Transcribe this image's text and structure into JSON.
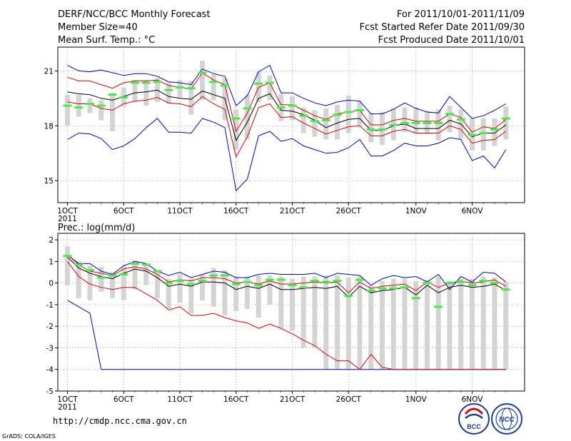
{
  "header": {
    "title": "DERF/NCC/BCC Monthly Forecast",
    "member_size": "Member Size=40",
    "variable": "Mean Surf. Temp.: °C",
    "period": "For 2011/10/01-2011/11/09",
    "started": "Fcst Started Refer Date 2011/09/30",
    "produced": "Fcst Produced Date 2011/10/01"
  },
  "footer": {
    "url": "http://cmdp.ncc.cma.gov.cn",
    "credit": "GrADS: COLA/IGES",
    "logo_left": "BCC",
    "logo_right": "NCC"
  },
  "colors": {
    "mean": "#000000",
    "spread": "#dd0000",
    "envelope": "#0000cc",
    "median": "#44ee44",
    "box": "#d4d4d4",
    "grid": "#888888"
  },
  "chart_data": [
    {
      "type": "line",
      "title": "Mean Surf. Temp.: °C",
      "xlabel": "",
      "ylabel": "",
      "x_day_range": [
        0,
        39
      ],
      "ylim": [
        13.8,
        22.3
      ],
      "yticks": [
        15,
        18,
        21
      ],
      "xticks": [
        {
          "day": 0,
          "label": "1OCT"
        },
        {
          "day": 5,
          "label": "6OCT"
        },
        {
          "day": 10,
          "label": "11OCT"
        },
        {
          "day": 15,
          "label": "16OCT"
        },
        {
          "day": 20,
          "label": "21OCT"
        },
        {
          "day": 25,
          "label": "26OCT"
        },
        {
          "day": 31,
          "label": "1NOV"
        },
        {
          "day": 36,
          "label": "6NOV"
        }
      ],
      "year_label": "2011",
      "series": [
        {
          "name": "ensemble_mean",
          "color": "#000000",
          "values": [
            19.85,
            19.75,
            19.7,
            19.5,
            19.4,
            19.6,
            19.8,
            19.85,
            19.95,
            19.6,
            19.5,
            19.45,
            19.9,
            19.7,
            19.5,
            17.2,
            18.2,
            19.5,
            19.75,
            18.85,
            18.8,
            18.6,
            18.3,
            17.9,
            18.15,
            18.35,
            18.4,
            17.75,
            17.75,
            18.0,
            18.1,
            17.85,
            17.85,
            17.85,
            18.3,
            18.1,
            17.4,
            17.6,
            17.6,
            18.05
          ]
        },
        {
          "name": "upper_spread",
          "color": "#dd0000",
          "values": [
            20.65,
            20.45,
            20.45,
            20.25,
            20.05,
            20.35,
            20.45,
            20.45,
            20.5,
            20.2,
            20.1,
            20.0,
            20.9,
            20.5,
            20.25,
            17.7,
            18.7,
            20.1,
            20.35,
            19.15,
            19.15,
            18.85,
            18.55,
            18.35,
            18.65,
            18.75,
            18.85,
            18.05,
            18.05,
            18.3,
            18.4,
            18.25,
            18.25,
            18.25,
            18.65,
            18.45,
            17.65,
            17.95,
            17.85,
            18.35
          ]
        },
        {
          "name": "lower_spread",
          "color": "#dd0000",
          "values": [
            19.3,
            19.2,
            19.2,
            18.95,
            18.85,
            19.2,
            19.35,
            19.4,
            19.55,
            19.25,
            19.2,
            19.05,
            19.6,
            19.2,
            18.9,
            16.3,
            17.4,
            19.0,
            19.2,
            18.45,
            18.5,
            18.15,
            17.85,
            17.55,
            17.75,
            17.95,
            18.0,
            17.45,
            17.45,
            17.7,
            17.8,
            17.6,
            17.6,
            17.6,
            18.0,
            17.8,
            17.05,
            17.2,
            17.25,
            17.7
          ]
        },
        {
          "name": "ensemble_max",
          "color": "#0000cc",
          "values": [
            21.3,
            21.0,
            20.95,
            21.05,
            20.9,
            20.75,
            20.85,
            20.85,
            20.7,
            20.4,
            20.35,
            20.25,
            21.1,
            20.85,
            20.7,
            19.1,
            19.65,
            20.95,
            21.3,
            19.8,
            19.8,
            19.5,
            19.25,
            19.1,
            19.3,
            19.4,
            19.35,
            18.65,
            18.65,
            18.9,
            19.25,
            18.95,
            18.75,
            18.7,
            19.6,
            19.0,
            18.4,
            18.55,
            18.85,
            19.2
          ]
        },
        {
          "name": "ensemble_min",
          "color": "#0000cc",
          "values": [
            17.25,
            17.6,
            17.55,
            17.3,
            16.7,
            16.9,
            17.3,
            17.9,
            18.4,
            17.65,
            17.65,
            17.6,
            18.4,
            18.2,
            17.9,
            14.45,
            15.1,
            17.45,
            17.7,
            17.15,
            17.3,
            16.9,
            16.7,
            16.5,
            16.55,
            16.8,
            17.25,
            16.35,
            16.35,
            16.65,
            17.05,
            16.9,
            16.9,
            17.05,
            17.35,
            17.25,
            16.1,
            16.35,
            15.7,
            16.7
          ]
        },
        {
          "name": "median",
          "color": "#44ee44",
          "values": [
            19.1,
            19.0,
            19.2,
            19.1,
            19.7,
            19.55,
            20.35,
            20.35,
            20.4,
            19.95,
            20.1,
            20.05,
            20.9,
            20.4,
            20.2,
            18.4,
            18.95,
            20.3,
            20.35,
            19.0,
            19.1,
            18.55,
            18.25,
            18.3,
            18.6,
            18.75,
            18.85,
            17.8,
            17.8,
            18.05,
            18.15,
            18.15,
            18.15,
            18.15,
            18.65,
            18.35,
            17.5,
            17.6,
            17.8,
            18.4
          ]
        },
        {
          "name": "box_top",
          "color": "#d4d4d4",
          "values": [
            19.7,
            19.7,
            19.5,
            19.4,
            19.8,
            20.1,
            20.5,
            20.5,
            20.6,
            20.35,
            20.5,
            20.45,
            21.55,
            20.8,
            20.6,
            18.9,
            19.7,
            20.95,
            20.75,
            19.75,
            19.6,
            19.0,
            18.85,
            18.95,
            19.15,
            19.65,
            19.35,
            18.7,
            18.75,
            18.95,
            19.0,
            19.0,
            18.8,
            18.9,
            19.1,
            18.9,
            18.4,
            18.4,
            18.4,
            19.05
          ]
        },
        {
          "name": "box_bottom",
          "color": "#d4d4d4",
          "values": [
            18.0,
            18.5,
            18.7,
            18.3,
            17.7,
            19.05,
            19.3,
            19.1,
            19.3,
            19.2,
            19.55,
            18.6,
            19.4,
            19.4,
            18.3,
            16.7,
            17.25,
            19.3,
            19.4,
            18.25,
            18.3,
            17.6,
            17.4,
            17.25,
            17.25,
            17.6,
            18.0,
            17.1,
            16.95,
            17.2,
            17.65,
            17.55,
            17.55,
            17.2,
            17.65,
            17.3,
            16.65,
            16.65,
            16.9,
            17.25
          ]
        }
      ]
    },
    {
      "type": "line",
      "title": "Prec.: log(mm/d)",
      "xlabel": "",
      "ylabel": "",
      "x_day_range": [
        0,
        39
      ],
      "ylim": [
        -5,
        2.3
      ],
      "yticks": [
        -5,
        -4,
        -3,
        -2,
        -1,
        0,
        1,
        2
      ],
      "xticks": [
        {
          "day": 0,
          "label": "1OCT"
        },
        {
          "day": 5,
          "label": "6OCT"
        },
        {
          "day": 10,
          "label": "11OCT"
        },
        {
          "day": 15,
          "label": "16OCT"
        },
        {
          "day": 20,
          "label": "21OCT"
        },
        {
          "day": 25,
          "label": "26OCT"
        },
        {
          "day": 31,
          "label": "1NOV"
        },
        {
          "day": 36,
          "label": "6NOV"
        }
      ],
      "year_label": "2011",
      "series": [
        {
          "name": "ensemble_mean",
          "color": "#000000",
          "values": [
            1.2,
            0.7,
            0.45,
            0.3,
            0.2,
            0.45,
            0.65,
            0.55,
            0.25,
            -0.15,
            -0.05,
            -0.15,
            0.05,
            0.05,
            0.0,
            -0.3,
            -0.15,
            -0.25,
            -0.05,
            -0.3,
            -0.3,
            -0.25,
            -0.2,
            -0.25,
            -0.15,
            -0.65,
            -0.15,
            -0.45,
            -0.35,
            -0.3,
            -0.2,
            -0.55,
            -0.1,
            -0.45,
            -0.2,
            -0.1,
            -0.2,
            -0.15,
            -0.05,
            -0.35
          ]
        },
        {
          "name": "upper_spread",
          "color": "#dd0000",
          "values": [
            1.3,
            0.85,
            0.55,
            0.45,
            0.35,
            0.65,
            0.75,
            0.65,
            0.4,
            0.05,
            0.15,
            0.1,
            0.25,
            0.25,
            0.2,
            0.0,
            0.05,
            -0.05,
            0.1,
            -0.05,
            -0.05,
            0.0,
            0.05,
            0.0,
            0.05,
            -0.45,
            0.05,
            -0.25,
            -0.15,
            -0.1,
            -0.05,
            -0.35,
            0.05,
            -0.2,
            0.0,
            0.1,
            0.0,
            0.05,
            0.15,
            -0.15
          ]
        },
        {
          "name": "lower_spread",
          "color": "#dd0000",
          "values": [
            1.0,
            0.3,
            -0.05,
            -0.2,
            -0.3,
            -0.2,
            -0.2,
            -0.5,
            -0.8,
            -1.25,
            -1.1,
            -1.5,
            -1.5,
            -1.4,
            -1.6,
            -1.75,
            -1.85,
            -2.1,
            -1.9,
            -2.1,
            -2.35,
            -2.65,
            -2.9,
            -3.3,
            -3.6,
            -3.6,
            -4.0,
            -3.3,
            -3.9,
            -4.0,
            -4.0,
            -4.0,
            -4.0,
            -4.0,
            -4.0,
            -4.0,
            -4.0,
            -4.0,
            -4.0,
            -4.0
          ]
        },
        {
          "name": "ensemble_max",
          "color": "#0000cc",
          "values": [
            1.3,
            0.9,
            0.9,
            0.55,
            0.4,
            0.8,
            1.0,
            0.9,
            0.55,
            0.35,
            0.5,
            0.25,
            0.4,
            0.55,
            0.5,
            0.25,
            0.25,
            0.4,
            0.45,
            0.4,
            0.4,
            0.4,
            0.45,
            0.25,
            0.45,
            0.4,
            0.35,
            -0.1,
            0.2,
            0.35,
            0.25,
            0.3,
            0.05,
            0.4,
            -0.3,
            0.3,
            0.05,
            0.5,
            0.45,
            0.05
          ]
        },
        {
          "name": "ensemble_min",
          "color": "#0000cc",
          "values": [
            -0.8,
            -1.1,
            -1.4,
            -4.0,
            -4.0,
            -4.0,
            -4.0,
            -4.0,
            -4.0,
            -4.0,
            -4.0,
            -4.0,
            -4.0,
            -4.0,
            -4.0,
            -4.0,
            -4.0,
            -4.0,
            -4.0,
            -4.0,
            -4.0,
            -4.0,
            -4.0,
            -4.0,
            -4.0,
            -4.0,
            -4.0,
            -4.0,
            -4.0,
            -4.0,
            -4.0,
            -4.0,
            -4.0,
            -4.0,
            -4.0,
            -4.0,
            -4.0,
            -4.0,
            -4.0,
            -4.0
          ]
        },
        {
          "name": "median",
          "color": "#44ee44",
          "values": [
            1.25,
            0.85,
            0.6,
            0.25,
            0.35,
            0.4,
            0.9,
            0.85,
            0.55,
            0.0,
            0.1,
            -0.05,
            0.1,
            0.35,
            0.35,
            -0.05,
            0.05,
            -0.1,
            0.15,
            0.15,
            -0.1,
            -0.2,
            0.1,
            0.05,
            0.1,
            -0.6,
            0.15,
            -0.35,
            -0.25,
            -0.25,
            -0.2,
            -0.7,
            0.0,
            -1.1,
            0.0,
            0.05,
            -0.1,
            0.1,
            0.0,
            -0.3
          ]
        },
        {
          "name": "box_top",
          "color": "#d4d4d4",
          "values": [
            1.7,
            1.0,
            0.8,
            0.75,
            0.5,
            0.8,
            1.05,
            0.8,
            0.6,
            0.2,
            0.4,
            0.2,
            0.4,
            0.7,
            0.6,
            0.3,
            0.3,
            0.35,
            0.35,
            0.3,
            0.2,
            0.3,
            0.3,
            0.35,
            0.35,
            0.25,
            0.3,
            -0.1,
            0.1,
            0.2,
            0.2,
            0.1,
            0.15,
            0.3,
            0.1,
            0.2,
            0.2,
            0.3,
            0.25,
            0.05
          ]
        },
        {
          "name": "box_bottom",
          "color": "#d4d4d4",
          "values": [
            -0.1,
            -0.7,
            -0.8,
            -0.4,
            -0.7,
            -0.8,
            -0.3,
            -0.1,
            -0.7,
            -1.2,
            -0.9,
            -1.4,
            -0.8,
            -1.1,
            -1.5,
            -1.3,
            -1.2,
            -1.6,
            -1.0,
            -2.1,
            -2.2,
            -3.0,
            -3.0,
            -4.0,
            -4.0,
            -4.0,
            -4.0,
            -4.0,
            -4.0,
            -4.0,
            -4.0,
            -4.0,
            -4.0,
            -4.0,
            -4.0,
            -4.0,
            -4.0,
            -4.0,
            -4.0,
            -4.0
          ]
        }
      ]
    }
  ]
}
